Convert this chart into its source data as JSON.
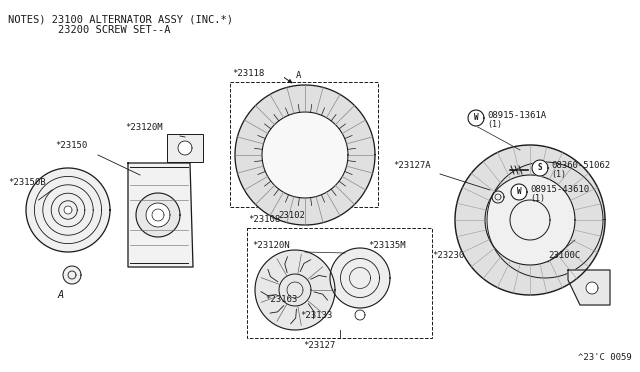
{
  "bg_color": "#ffffff",
  "line_color": "#1a1a1a",
  "gray_color": "#666666",
  "fig_width": 6.4,
  "fig_height": 3.72,
  "dpi": 100,
  "notes_line1": "NOTES) 23100 ALTERNATOR ASSY (INC.*)",
  "notes_line2": "        23200 SCREW SET--A",
  "diagram_code": "^23'C 0059"
}
